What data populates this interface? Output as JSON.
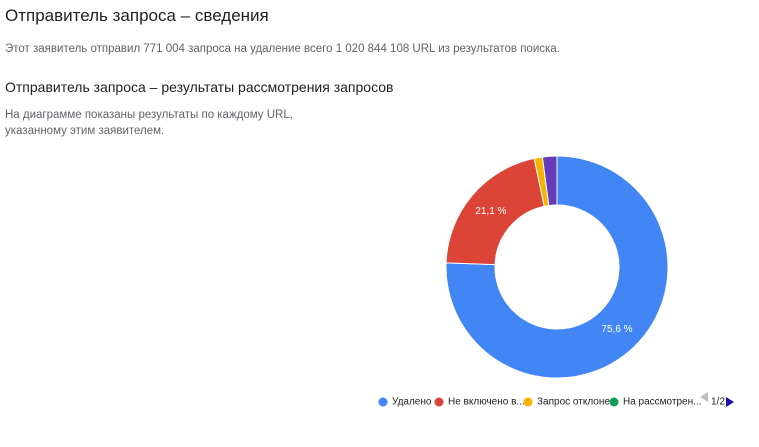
{
  "header": {
    "title": "Отправитель запроса – сведения",
    "summary": "Этот заявитель отправил 771 004 запроса на удаление всего 1 020 844 108 URL из результатов поиска.",
    "section_title": "Отправитель запроса – результаты рассмотрения запросов",
    "section_text": "На диаграмме показаны результаты по каждому URL, указанному этим заявителем."
  },
  "chart_data": {
    "type": "donut",
    "categories": [
      "Удалено",
      "Не включено в...",
      "Запрос отклонен",
      "На рассмотрен...",
      null
    ],
    "values": [
      75.6,
      21.1,
      1.2,
      0,
      2.1
    ],
    "value_labels": [
      "75,6 %",
      "21,1 %",
      null,
      null,
      null
    ],
    "colors": [
      "#4285f4",
      "#db4437",
      "#f4b400",
      "#0f9d58",
      "#673ab7"
    ],
    "legend_page": "1/2"
  }
}
